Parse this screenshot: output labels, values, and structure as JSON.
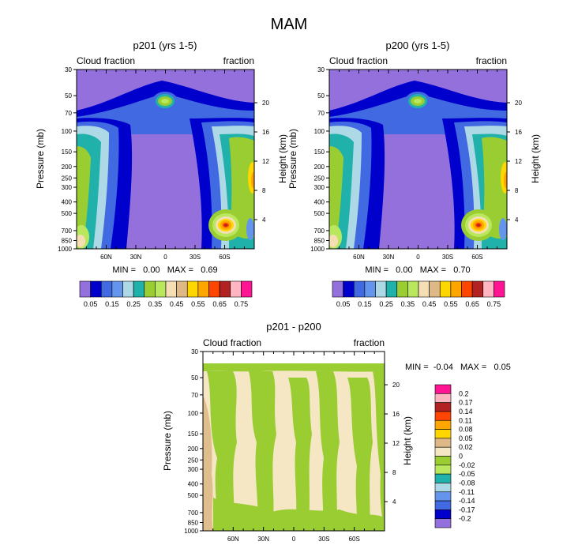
{
  "figure_title": "MAM",
  "colors": {
    "mam_scale": [
      "#9370DB",
      "#0000CD",
      "#4169E1",
      "#6495ED",
      "#ADD8E6",
      "#20B2AA",
      "#9ACD32",
      "#B9E85E",
      "#F5DEB3",
      "#DEB887",
      "#FFD700",
      "#FFA500",
      "#FF4500",
      "#B22222",
      "#FFB6C1",
      "#FF1493"
    ],
    "diff_scale": [
      "#9370DB",
      "#0000CD",
      "#4169E1",
      "#6495ED",
      "#ADD8E6",
      "#20B2AA",
      "#B9E85E",
      "#9ACD32",
      "#F5E6C4",
      "#DEB887",
      "#FFD700",
      "#FFA500",
      "#FF4500",
      "#B22222",
      "#FFB6C1",
      "#FF1493"
    ]
  },
  "chart_data": [
    {
      "type": "heatmap",
      "title": "p201 (yrs 1-5)",
      "left_subtitle": "Cloud fraction",
      "right_subtitle": "fraction",
      "ylabel": "Pressure (mb)",
      "right_ylabel": "Height (km)",
      "x_ticks": [
        "60N",
        "30N",
        "0",
        "30S",
        "60S"
      ],
      "pressure_ticks": [
        "30",
        "50",
        "70",
        "100",
        "150",
        "200",
        "250",
        "300",
        "400",
        "500",
        "700",
        "850",
        "1000"
      ],
      "height_ticks": [
        "20",
        "16",
        "12",
        "8",
        "4"
      ],
      "stats_text": "MIN =   0.00   MAX =   0.69",
      "min": 0.0,
      "max": 0.69,
      "contour_levels": [
        0.05,
        0.1,
        0.15,
        0.2,
        0.25,
        0.3,
        0.35,
        0.4,
        0.45,
        0.5,
        0.55,
        0.6,
        0.65,
        0.7,
        0.75
      ],
      "colorbar_labels": [
        "0.05",
        "0.15",
        "0.25",
        "0.35",
        "0.45",
        "0.55",
        "0.65",
        "0.75"
      ]
    },
    {
      "type": "heatmap",
      "title": "p200 (yrs 1-5)",
      "left_subtitle": "Cloud fraction",
      "right_subtitle": "fraction",
      "ylabel": "Pressure (mb)",
      "right_ylabel": "Height (km)",
      "x_ticks": [
        "60N",
        "30N",
        "0",
        "30S",
        "60S"
      ],
      "pressure_ticks": [
        "30",
        "50",
        "70",
        "100",
        "150",
        "200",
        "250",
        "300",
        "400",
        "500",
        "700",
        "850",
        "1000"
      ],
      "height_ticks": [
        "20",
        "16",
        "12",
        "8",
        "4"
      ],
      "stats_text": "MIN =   0.00   MAX =   0.70",
      "min": 0.0,
      "max": 0.7,
      "contour_levels": [
        0.05,
        0.1,
        0.15,
        0.2,
        0.25,
        0.3,
        0.35,
        0.4,
        0.45,
        0.5,
        0.55,
        0.6,
        0.65,
        0.7,
        0.75
      ],
      "colorbar_labels": [
        "0.05",
        "0.15",
        "0.25",
        "0.35",
        "0.45",
        "0.55",
        "0.65",
        "0.75"
      ]
    },
    {
      "type": "heatmap",
      "title": "p201 - p200",
      "left_subtitle": "Cloud fraction",
      "right_subtitle": "fraction",
      "ylabel": "Pressure (mb)",
      "right_ylabel": "Height (km)",
      "x_ticks": [
        "60N",
        "30N",
        "0",
        "30S",
        "60S"
      ],
      "pressure_ticks": [
        "30",
        "50",
        "70",
        "100",
        "150",
        "200",
        "250",
        "300",
        "400",
        "500",
        "700",
        "850",
        "1000"
      ],
      "height_ticks": [
        "20",
        "16",
        "12",
        "8",
        "4"
      ],
      "stats_text": "MIN =  -0.04   MAX =   0.05",
      "min": -0.04,
      "max": 0.05,
      "colorbar_labels": [
        "0.2",
        "0.17",
        "0.14",
        "0.11",
        "0.08",
        "0.05",
        "0.02",
        "0",
        "-0.02",
        "-0.05",
        "-0.08",
        "-0.11",
        "-0.14",
        "-0.17",
        "-0.2"
      ]
    }
  ]
}
